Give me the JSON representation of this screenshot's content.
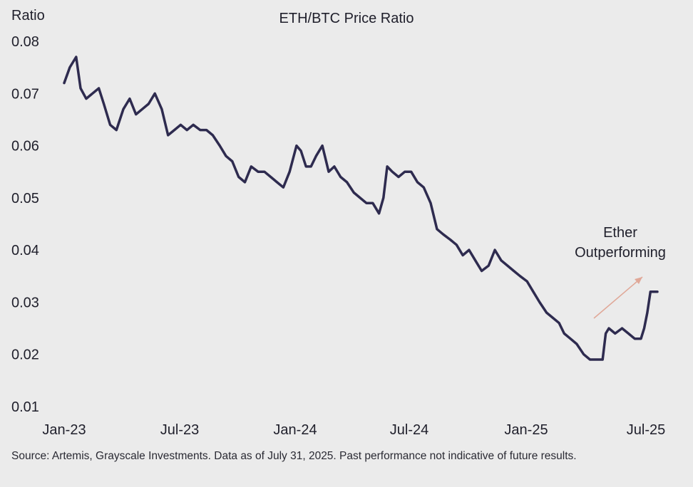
{
  "chart_data": {
    "type": "line",
    "title": "ETH/BTC Price Ratio",
    "ylabel": "Ratio",
    "xlabel": "",
    "ylim": [
      0.01,
      0.08
    ],
    "yticks": [
      "0.01",
      "0.02",
      "0.03",
      "0.04",
      "0.05",
      "0.06",
      "0.07",
      "0.08"
    ],
    "xticks": [
      "Jan-23",
      "Jul-23",
      "Jan-24",
      "Jul-24",
      "Jan-25",
      "Jul-25"
    ],
    "xtick_dates": [
      "2023-01-01",
      "2023-07-01",
      "2024-01-01",
      "2024-07-01",
      "2025-01-01",
      "2025-07-01"
    ],
    "grid": false,
    "line_color": "#2e2b4f",
    "annotation": {
      "text_lines": [
        "Ether",
        "Outperforming"
      ],
      "arrow_color": "#e0a898"
    },
    "series": [
      {
        "x": [
          "2023-01-01",
          "2023-01-10",
          "2023-01-20",
          "2023-01-27",
          "2023-02-05",
          "2023-02-15",
          "2023-02-25",
          "2023-03-05",
          "2023-03-15",
          "2023-03-25",
          "2023-04-05",
          "2023-04-15",
          "2023-04-25",
          "2023-05-05",
          "2023-05-15",
          "2023-05-25",
          "2023-06-05",
          "2023-06-15",
          "2023-06-25",
          "2023-07-05",
          "2023-07-15",
          "2023-07-25",
          "2023-08-05",
          "2023-08-15",
          "2023-08-25",
          "2023-09-05",
          "2023-09-15",
          "2023-09-25",
          "2023-10-05",
          "2023-10-15",
          "2023-10-25",
          "2023-11-05",
          "2023-11-15",
          "2023-11-25",
          "2023-12-05",
          "2023-12-15",
          "2023-12-25",
          "2024-01-05",
          "2024-01-12",
          "2024-01-20",
          "2024-01-28",
          "2024-02-05",
          "2024-02-15",
          "2024-02-25",
          "2024-03-05",
          "2024-03-15",
          "2024-03-25",
          "2024-04-05",
          "2024-04-15",
          "2024-04-25",
          "2024-05-05",
          "2024-05-15",
          "2024-05-22",
          "2024-05-28",
          "2024-06-05",
          "2024-06-15",
          "2024-06-25",
          "2024-07-05",
          "2024-07-15",
          "2024-07-25",
          "2024-08-05",
          "2024-08-15",
          "2024-08-25",
          "2024-09-05",
          "2024-09-15",
          "2024-09-25",
          "2024-10-05",
          "2024-10-15",
          "2024-10-25",
          "2024-11-05",
          "2024-11-15",
          "2024-11-25",
          "2024-12-05",
          "2024-12-15",
          "2024-12-25",
          "2025-01-05",
          "2025-01-15",
          "2025-01-25",
          "2025-02-05",
          "2025-02-15",
          "2025-02-25",
          "2025-03-05",
          "2025-03-15",
          "2025-03-25",
          "2025-04-05",
          "2025-04-15",
          "2025-04-25",
          "2025-05-05",
          "2025-05-10",
          "2025-05-15",
          "2025-05-25",
          "2025-06-05",
          "2025-06-15",
          "2025-06-25",
          "2025-07-05",
          "2025-07-10",
          "2025-07-15",
          "2025-07-20",
          "2025-07-25",
          "2025-07-31"
        ],
        "values": [
          0.072,
          0.075,
          0.077,
          0.071,
          0.069,
          0.07,
          0.071,
          0.068,
          0.064,
          0.063,
          0.067,
          0.069,
          0.066,
          0.067,
          0.068,
          0.07,
          0.067,
          0.062,
          0.063,
          0.064,
          0.063,
          0.064,
          0.063,
          0.063,
          0.062,
          0.06,
          0.058,
          0.057,
          0.054,
          0.053,
          0.056,
          0.055,
          0.055,
          0.054,
          0.053,
          0.052,
          0.055,
          0.06,
          0.059,
          0.056,
          0.056,
          0.058,
          0.06,
          0.055,
          0.056,
          0.054,
          0.053,
          0.051,
          0.05,
          0.049,
          0.049,
          0.047,
          0.05,
          0.056,
          0.055,
          0.054,
          0.055,
          0.055,
          0.053,
          0.052,
          0.049,
          0.044,
          0.043,
          0.042,
          0.041,
          0.039,
          0.04,
          0.038,
          0.036,
          0.037,
          0.04,
          0.038,
          0.037,
          0.036,
          0.035,
          0.034,
          0.032,
          0.03,
          0.028,
          0.027,
          0.026,
          0.024,
          0.023,
          0.022,
          0.02,
          0.019,
          0.019,
          0.019,
          0.024,
          0.025,
          0.024,
          0.025,
          0.024,
          0.023,
          0.023,
          0.025,
          0.028,
          0.032,
          0.032,
          0.032
        ]
      }
    ]
  },
  "footnote": "Source: Artemis, Grayscale Investments. Data as of July 31, 2025. Past performance not indicative of future results."
}
